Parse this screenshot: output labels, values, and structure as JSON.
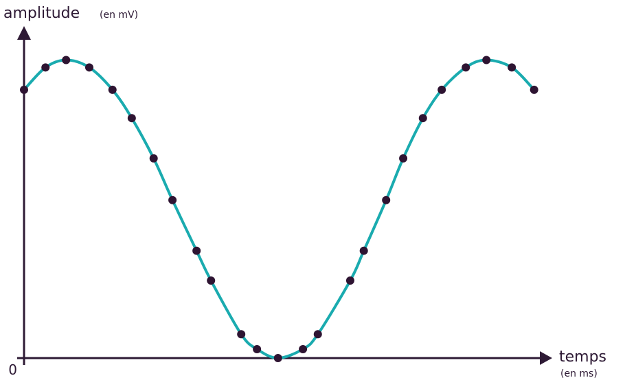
{
  "chart_data": {
    "type": "line",
    "y_label": "amplitude",
    "y_unit": "(en mV)",
    "x_label": "temps",
    "x_unit": "(en ms)",
    "x": [
      0,
      0.49,
      0.96,
      1.49,
      2.02,
      2.46,
      2.96,
      3.39,
      3.94,
      4.27,
      4.96,
      5.32,
      5.8,
      6.37,
      6.71,
      7.45,
      7.76,
      8.27,
      8.66,
      9.11,
      9.54,
      10.09,
      10.56,
      11.14,
      11.65
    ],
    "values": [
      9.0,
      9.75,
      10,
      9.75,
      9.0,
      8.05,
      6.7,
      5.3,
      3.6,
      2.6,
      0.8,
      0.3,
      0,
      0.3,
      0.8,
      2.6,
      3.6,
      5.3,
      6.7,
      8.05,
      9.0,
      9.75,
      10,
      9.75,
      9.0
    ],
    "color": "#1aabaf",
    "marker_color": "#2e1432",
    "axis_color": "#2e1a35",
    "xlim": [
      0,
      12
    ],
    "ylim": [
      0,
      11
    ],
    "yticks": [
      0
    ]
  }
}
